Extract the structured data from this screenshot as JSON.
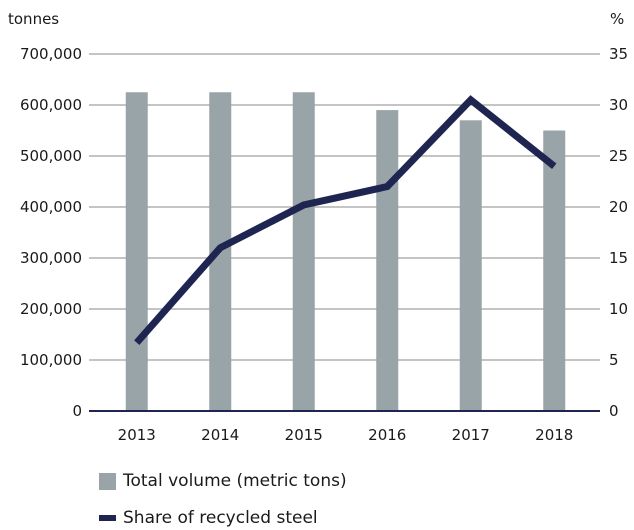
{
  "chart_data": {
    "type": "bar",
    "categories": [
      "2013",
      "2014",
      "2015",
      "2016",
      "2017",
      "2018"
    ],
    "series": [
      {
        "name": "Total volume (metric tons)",
        "type": "bar",
        "axis": "left",
        "color": "#98a4a8",
        "values": [
          625000,
          625000,
          625000,
          590000,
          570000,
          550000
        ]
      },
      {
        "name": "Share of recycled steel",
        "type": "line",
        "axis": "right",
        "color": "#1e2550",
        "values": [
          6.7,
          16,
          20.2,
          22,
          30.5,
          24
        ]
      }
    ],
    "left_axis": {
      "unit_label": "tonnes",
      "ylim": [
        0,
        700000
      ],
      "ticks": [
        0,
        100000,
        200000,
        300000,
        400000,
        500000,
        600000,
        700000
      ],
      "tick_labels": [
        "0",
        "100,000",
        "200,000",
        "300,000",
        "400,000",
        "500,000",
        "600,000",
        "700,000"
      ]
    },
    "right_axis": {
      "unit_label": "%",
      "ylim": [
        0,
        35
      ],
      "ticks": [
        0,
        5,
        10,
        15,
        20,
        25,
        30,
        35
      ],
      "tick_labels": [
        "0",
        "5",
        "10",
        "15",
        "20",
        "25",
        "30",
        "35"
      ]
    },
    "grid": true,
    "legend_position": "bottom-left"
  },
  "legend": {
    "bar_label": "Total volume (metric tons)",
    "line_label": "Share of recycled steel"
  }
}
